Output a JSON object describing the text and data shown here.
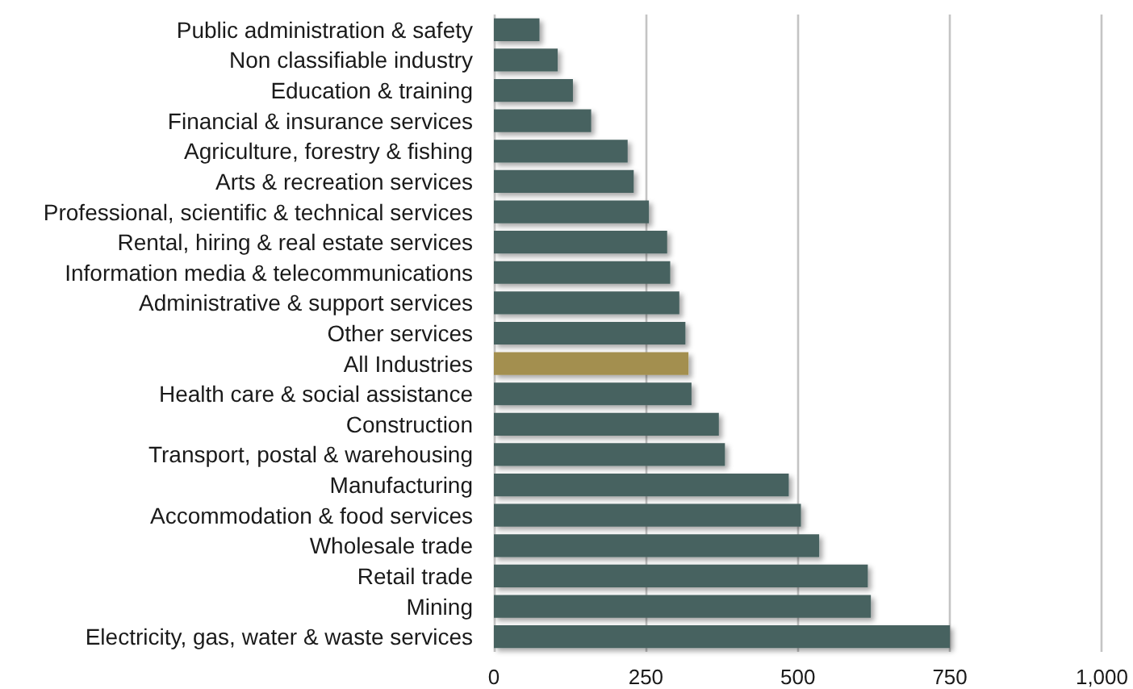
{
  "chart_data": {
    "type": "bar",
    "orientation": "horizontal",
    "categories": [
      "Public administration & safety",
      "Non classifiable industry",
      "Education & training",
      "Financial & insurance services",
      "Agriculture, forestry & fishing",
      "Arts & recreation services",
      "Professional, scientific & technical services",
      "Rental, hiring & real estate services",
      "Information media & telecommunications",
      "Administrative & support services",
      "Other services",
      "All Industries",
      "Health care & social assistance",
      "Construction",
      "Transport, postal & warehousing",
      "Manufacturing",
      "Accommodation & food services",
      "Wholesale trade",
      "Retail trade",
      "Mining",
      "Electricity, gas, water & waste services"
    ],
    "values": [
      75,
      105,
      130,
      160,
      220,
      230,
      255,
      285,
      290,
      305,
      315,
      320,
      325,
      370,
      380,
      485,
      505,
      535,
      615,
      620,
      750
    ],
    "colors": [
      "#476260",
      "#476260",
      "#476260",
      "#476260",
      "#476260",
      "#476260",
      "#476260",
      "#476260",
      "#476260",
      "#476260",
      "#476260",
      "#a38f50",
      "#476260",
      "#476260",
      "#476260",
      "#476260",
      "#476260",
      "#476260",
      "#476260",
      "#476260",
      "#476260"
    ],
    "xlim": [
      0,
      1000
    ],
    "xticks": [
      0,
      250,
      500,
      750,
      {
        "value": 1000,
        "label": "1,000"
      }
    ],
    "grid": "x"
  }
}
